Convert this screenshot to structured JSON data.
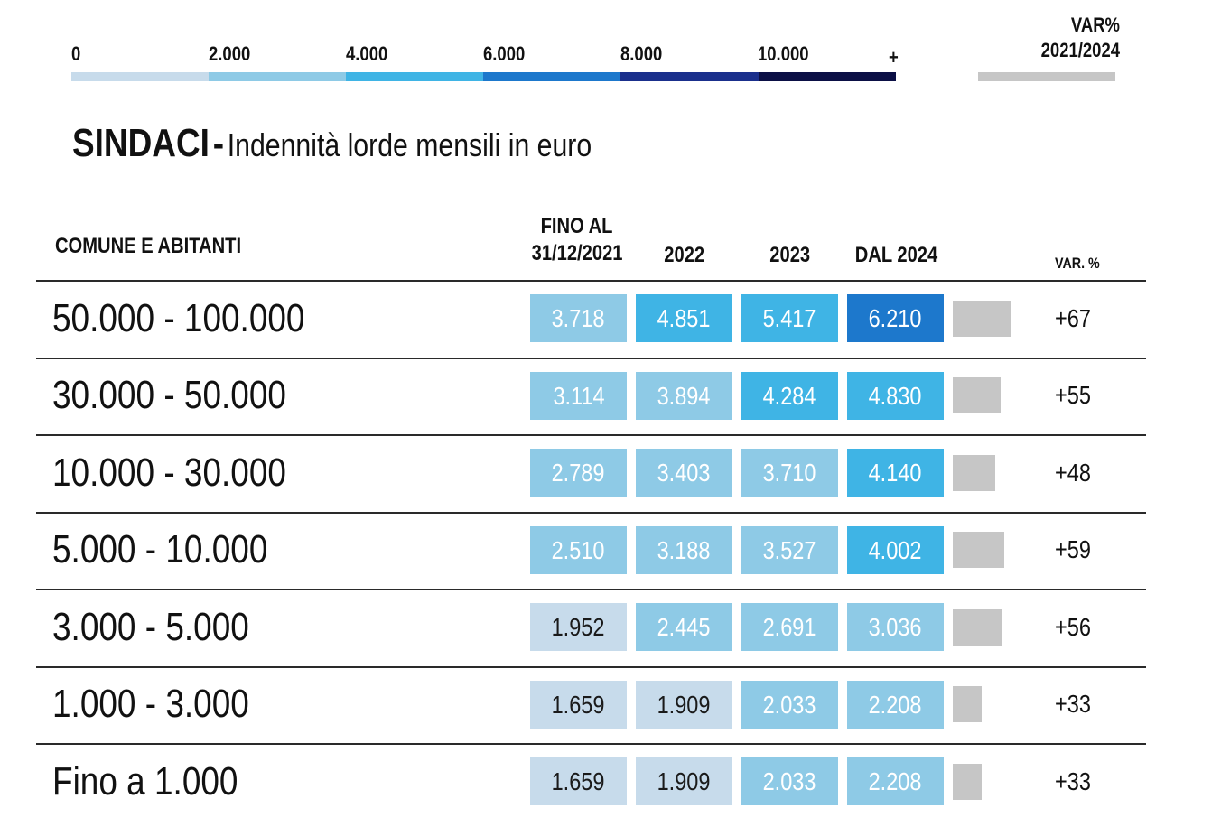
{
  "legend": {
    "ticks": [
      "0",
      "2.000",
      "4.000",
      "6.000",
      "8.000",
      "10.000",
      "+"
    ],
    "colors": [
      "#c7dbeb",
      "#8ecae6",
      "#3fb4e5",
      "#1d78cc",
      "#1a2f8c",
      "#0b0f45"
    ],
    "var_title_line1": "VAR%",
    "var_title_line2": "2021/2024",
    "var_color": "#c6c6c6"
  },
  "title": {
    "main": "SINDACI",
    "dash": "-",
    "subtitle": "Indennità lorde mensili in euro"
  },
  "table": {
    "col_comune": "COMUNE E ABITANTI",
    "col_2021_line1": "FINO AL",
    "col_2021_line2": "31/12/2021",
    "col_2022": "2022",
    "col_2023": "2023",
    "col_2024": "DAL 2024",
    "col_var": "VAR. %"
  },
  "chart_data": {
    "type": "table",
    "title": "SINDACI - Indennità lorde mensili in euro",
    "columns": [
      "FINO AL 31/12/2021",
      "2022",
      "2023",
      "DAL 2024",
      "VAR. %"
    ],
    "color_scale": {
      "thresholds": [
        0,
        2000,
        4000,
        6000,
        8000,
        10000
      ],
      "colors": [
        "#c7dbeb",
        "#8ecae6",
        "#3fb4e5",
        "#1d78cc",
        "#1a2f8c",
        "#0b0f45"
      ]
    },
    "rows": [
      {
        "label": "50.000 - 100.000",
        "values": [
          3718,
          4851,
          5417,
          6210
        ],
        "labels": [
          "3.718",
          "4.851",
          "5.417",
          "6.210"
        ],
        "var": 67,
        "var_label": "+67"
      },
      {
        "label": "30.000 - 50.000",
        "values": [
          3114,
          3894,
          4284,
          4830
        ],
        "labels": [
          "3.114",
          "3.894",
          "4.284",
          "4.830"
        ],
        "var": 55,
        "var_label": "+55"
      },
      {
        "label": "10.000 - 30.000",
        "values": [
          2789,
          3403,
          3710,
          4140
        ],
        "labels": [
          "2.789",
          "3.403",
          "3.710",
          "4.140"
        ],
        "var": 48,
        "var_label": "+48"
      },
      {
        "label": "5.000 - 10.000",
        "values": [
          2510,
          3188,
          3527,
          4002
        ],
        "labels": [
          "2.510",
          "3.188",
          "3.527",
          "4.002"
        ],
        "var": 59,
        "var_label": "+59"
      },
      {
        "label": "3.000 - 5.000",
        "values": [
          1952,
          2445,
          2691,
          3036
        ],
        "labels": [
          "1.952",
          "2.445",
          "2.691",
          "3.036"
        ],
        "var": 56,
        "var_label": "+56"
      },
      {
        "label": "1.000 - 3.000",
        "values": [
          1659,
          1909,
          2033,
          2208
        ],
        "labels": [
          "1.659",
          "1.909",
          "2.033",
          "2.208"
        ],
        "var": 33,
        "var_label": "+33"
      },
      {
        "label": "Fino a 1.000",
        "values": [
          1659,
          1909,
          2033,
          2208
        ],
        "labels": [
          "1.659",
          "1.909",
          "2.033",
          "2.208"
        ],
        "var": 33,
        "var_label": "+33"
      }
    ]
  }
}
